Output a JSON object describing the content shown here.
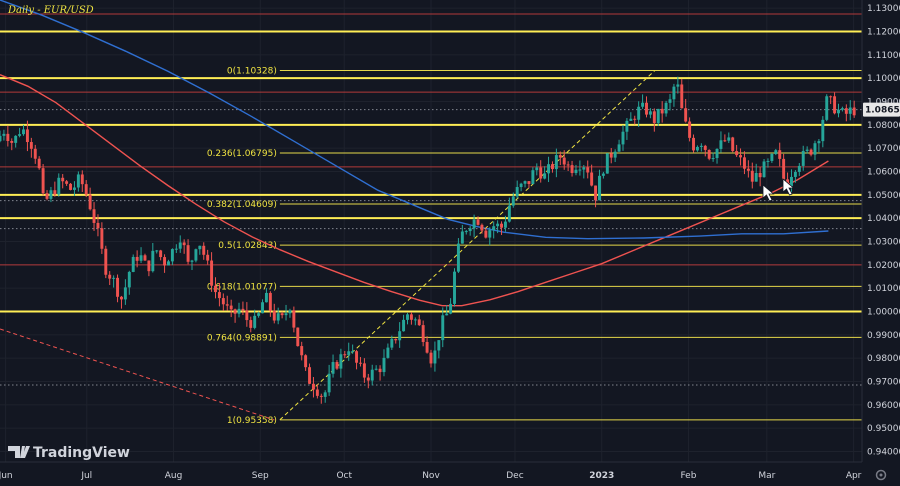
{
  "chart_data": {
    "type": "candlestick",
    "title": "Daily - EUR/USD",
    "brand": "TradingView",
    "ylim": [
      0.9355,
      1.1335
    ],
    "x_range_days": [
      0,
      308
    ],
    "x_ticks": [
      {
        "label": "Jun",
        "day": 2
      },
      {
        "label": "Jul",
        "day": 31
      },
      {
        "label": "Aug",
        "day": 62
      },
      {
        "label": "Sep",
        "day": 93
      },
      {
        "label": "Oct",
        "day": 123
      },
      {
        "label": "Nov",
        "day": 154
      },
      {
        "label": "Dec",
        "day": 184
      },
      {
        "label": "2023",
        "day": 215
      },
      {
        "label": "Feb",
        "day": 246
      },
      {
        "label": "Mar",
        "day": 274
      },
      {
        "label": "Apr",
        "day": 305
      }
    ],
    "y_ticks": [
      "1.13000",
      "1.12000",
      "1.11000",
      "1.10000",
      "1.09000",
      "1.08000",
      "1.07000",
      "1.06000",
      "1.05000",
      "1.04000",
      "1.03000",
      "1.02000",
      "1.01000",
      "1.00000",
      "0.99000",
      "0.98000",
      "0.97000",
      "0.96000",
      "0.95000",
      "0.94000"
    ],
    "last_price": {
      "label": "1.08652",
      "value": 1.08652,
      "color": "#e8e8e8"
    },
    "yellow_levels": [
      1.12,
      1.1,
      1.08,
      1.05,
      1.04,
      1.0
    ],
    "red_levels": [
      1.1275,
      1.094,
      1.062,
      1.02
    ],
    "dotted_levels": [
      1.0865,
      1.0475,
      1.0355,
      0.9685
    ],
    "fib_levels": [
      {
        "label": "0(1.10328)",
        "value": 1.10328
      },
      {
        "label": "0.236(1.06795)",
        "value": 1.06795
      },
      {
        "label": "0.382(1.04609)",
        "value": 1.04609
      },
      {
        "label": "0.5(1.02843)",
        "value": 1.02843
      },
      {
        "label": "0.618(1.01077)",
        "value": 1.01077
      },
      {
        "label": "0.764(0.98891)",
        "value": 0.98891
      },
      {
        "label": "1(0.95358)",
        "value": 0.95358
      }
    ],
    "series": [
      {
        "name": "",
        "kind": "moving-average",
        "color": "#ef5350",
        "points": [
          [
            0,
            1.1015
          ],
          [
            10,
            1.0965
          ],
          [
            20,
            1.0895
          ],
          [
            30,
            1.0805
          ],
          [
            40,
            1.0715
          ],
          [
            50,
            1.0625
          ],
          [
            60,
            1.054
          ],
          [
            70,
            1.046
          ],
          [
            80,
            1.0385
          ],
          [
            90,
            1.032
          ],
          [
            100,
            1.0265
          ],
          [
            110,
            1.0215
          ],
          [
            120,
            1.017
          ],
          [
            130,
            1.0125
          ],
          [
            140,
            1.0085
          ],
          [
            150,
            1.0048
          ],
          [
            158,
            1.0025
          ],
          [
            165,
            1.0025
          ],
          [
            175,
            1.005
          ],
          [
            185,
            1.0085
          ],
          [
            195,
            1.0125
          ],
          [
            205,
            1.0165
          ],
          [
            215,
            1.0205
          ],
          [
            225,
            1.0255
          ],
          [
            235,
            1.0305
          ],
          [
            245,
            1.0355
          ],
          [
            255,
            1.0405
          ],
          [
            265,
            1.0455
          ],
          [
            275,
            1.0505
          ],
          [
            285,
            1.0565
          ],
          [
            296,
            1.0645
          ]
        ]
      },
      {
        "name": "",
        "kind": "moving-average",
        "color": "#2f6fd1",
        "points": [
          [
            0,
            1.1335
          ],
          [
            15,
            1.127
          ],
          [
            30,
            1.1195
          ],
          [
            45,
            1.1115
          ],
          [
            60,
            1.103
          ],
          [
            75,
            1.0935
          ],
          [
            90,
            1.0835
          ],
          [
            105,
            1.073
          ],
          [
            120,
            1.0625
          ],
          [
            135,
            1.052
          ],
          [
            150,
            1.0445
          ],
          [
            160,
            1.0395
          ],
          [
            170,
            1.0365
          ],
          [
            180,
            1.034
          ],
          [
            195,
            1.0318
          ],
          [
            210,
            1.0312
          ],
          [
            230,
            1.0315
          ],
          [
            250,
            1.0323
          ],
          [
            265,
            1.0333
          ],
          [
            280,
            1.0333
          ],
          [
            296,
            1.0345
          ]
        ]
      },
      {
        "name": "",
        "kind": "trendline",
        "color": "#ef5350",
        "dashed": true,
        "points": [
          [
            0,
            0.9925
          ],
          [
            98,
            0.9535
          ]
        ]
      },
      {
        "name": "",
        "kind": "trendline",
        "color": "#f0e442",
        "dashed": true,
        "points": [
          [
            100,
            0.9536
          ],
          [
            234,
            1.1033
          ]
        ]
      }
    ],
    "price_path": [
      [
        0,
        1.073
      ],
      [
        3,
        1.078
      ],
      [
        6,
        1.072
      ],
      [
        9,
        1.079
      ],
      [
        12,
        1.074
      ],
      [
        15,
        1.064
      ],
      [
        17,
        1.046
      ],
      [
        20,
        1.051
      ],
      [
        23,
        1.056
      ],
      [
        27,
        1.052
      ],
      [
        30,
        1.057
      ],
      [
        33,
        1.048
      ],
      [
        36,
        1.035
      ],
      [
        39,
        1.019
      ],
      [
        42,
        1.013
      ],
      [
        45,
        1.005
      ],
      [
        48,
        1.019
      ],
      [
        51,
        1.025
      ],
      [
        54,
        1.018
      ],
      [
        57,
        1.027
      ],
      [
        60,
        1.021
      ],
      [
        63,
        1.026
      ],
      [
        66,
        1.033
      ],
      [
        69,
        1.018
      ],
      [
        72,
        1.032
      ],
      [
        75,
        1.022
      ],
      [
        78,
        1.009
      ],
      [
        81,
        1.004
      ],
      [
        84,
        0.998
      ],
      [
        87,
        1.001
      ],
      [
        90,
        0.996
      ],
      [
        93,
        0.995
      ],
      [
        96,
        1.007
      ],
      [
        99,
        0.998
      ],
      [
        102,
        0.996
      ],
      [
        105,
        1.003
      ],
      [
        108,
        0.985
      ],
      [
        111,
        0.972
      ],
      [
        114,
        0.968
      ],
      [
        117,
        0.963
      ],
      [
        120,
        0.975
      ],
      [
        123,
        0.98
      ],
      [
        126,
        0.985
      ],
      [
        129,
        0.977
      ],
      [
        132,
        0.972
      ],
      [
        135,
        0.974
      ],
      [
        138,
        0.977
      ],
      [
        141,
        0.985
      ],
      [
        144,
        0.992
      ],
      [
        147,
        0.999
      ],
      [
        150,
        0.996
      ],
      [
        153,
        0.989
      ],
      [
        156,
        0.978
      ],
      [
        159,
        0.994
      ],
      [
        162,
        1.001
      ],
      [
        164,
        1.018
      ],
      [
        166,
        1.032
      ],
      [
        169,
        1.038
      ],
      [
        172,
        1.04
      ],
      [
        175,
        1.034
      ],
      [
        178,
        1.037
      ],
      [
        181,
        1.036
      ],
      [
        184,
        1.048
      ],
      [
        187,
        1.053
      ],
      [
        190,
        1.055
      ],
      [
        193,
        1.062
      ],
      [
        196,
        1.058
      ],
      [
        199,
        1.063
      ],
      [
        202,
        1.067
      ],
      [
        205,
        1.061
      ],
      [
        208,
        1.064
      ],
      [
        211,
        1.063
      ],
      [
        214,
        1.049
      ],
      [
        217,
        1.062
      ],
      [
        220,
        1.068
      ],
      [
        223,
        1.075
      ],
      [
        226,
        1.08
      ],
      [
        229,
        1.086
      ],
      [
        232,
        1.087
      ],
      [
        235,
        1.082
      ],
      [
        238,
        1.086
      ],
      [
        241,
        1.09
      ],
      [
        243,
        1.1
      ],
      [
        245,
        1.086
      ],
      [
        247,
        1.077
      ],
      [
        249,
        1.071
      ],
      [
        252,
        1.073
      ],
      [
        255,
        1.067
      ],
      [
        258,
        1.07
      ],
      [
        261,
        1.074
      ],
      [
        264,
        1.067
      ],
      [
        267,
        1.063
      ],
      [
        270,
        1.056
      ],
      [
        273,
        1.06
      ],
      [
        276,
        1.063
      ],
      [
        279,
        1.068
      ],
      [
        282,
        1.054
      ],
      [
        285,
        1.062
      ],
      [
        288,
        1.066
      ],
      [
        291,
        1.069
      ],
      [
        294,
        1.076
      ],
      [
        297,
        1.091
      ],
      [
        300,
        1.087
      ],
      [
        303,
        1.084
      ],
      [
        306,
        1.0865
      ]
    ]
  }
}
